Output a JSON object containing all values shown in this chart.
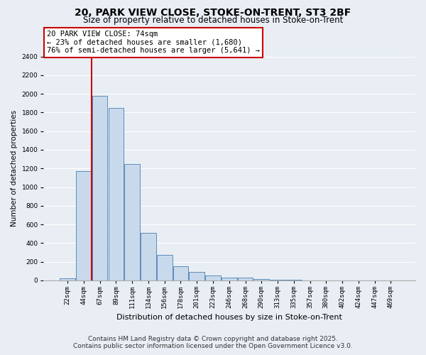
{
  "title": "20, PARK VIEW CLOSE, STOKE-ON-TRENT, ST3 2BF",
  "subtitle": "Size of property relative to detached houses in Stoke-on-Trent",
  "xlabel": "Distribution of detached houses by size in Stoke-on-Trent",
  "ylabel": "Number of detached properties",
  "bin_labels": [
    "22sqm",
    "44sqm",
    "67sqm",
    "89sqm",
    "111sqm",
    "134sqm",
    "156sqm",
    "178sqm",
    "201sqm",
    "223sqm",
    "246sqm",
    "268sqm",
    "290sqm",
    "313sqm",
    "335sqm",
    "357sqm",
    "380sqm",
    "402sqm",
    "424sqm",
    "447sqm",
    "469sqm"
  ],
  "bar_values": [
    20,
    1170,
    1980,
    1850,
    1250,
    510,
    270,
    155,
    90,
    50,
    30,
    30,
    15,
    8,
    5,
    3,
    3,
    2,
    2,
    1,
    1
  ],
  "bar_color": "#c9d9ec",
  "bar_edge_color": "#5b8db8",
  "vline_x": 1.5,
  "vline_color": "#cc0000",
  "ylim": [
    0,
    2400
  ],
  "yticks": [
    0,
    200,
    400,
    600,
    800,
    1000,
    1200,
    1400,
    1600,
    1800,
    2000,
    2200,
    2400
  ],
  "annotation_text": "20 PARK VIEW CLOSE: 74sqm\n← 23% of detached houses are smaller (1,680)\n76% of semi-detached houses are larger (5,641) →",
  "annotation_box_color": "#ffffff",
  "annotation_box_edge_color": "#cc0000",
  "footer_line1": "Contains HM Land Registry data © Crown copyright and database right 2025.",
  "footer_line2": "Contains public sector information licensed under the Open Government Licence v3.0.",
  "bg_color": "#e8eef4",
  "plot_bg_color": "#e8eef4",
  "grid_color": "#ffffff",
  "title_fontsize": 10,
  "subtitle_fontsize": 8.5,
  "tick_fontsize": 6.5,
  "ylabel_fontsize": 7.5,
  "xlabel_fontsize": 8,
  "footer_fontsize": 6.5,
  "annotation_fontsize": 7.5
}
